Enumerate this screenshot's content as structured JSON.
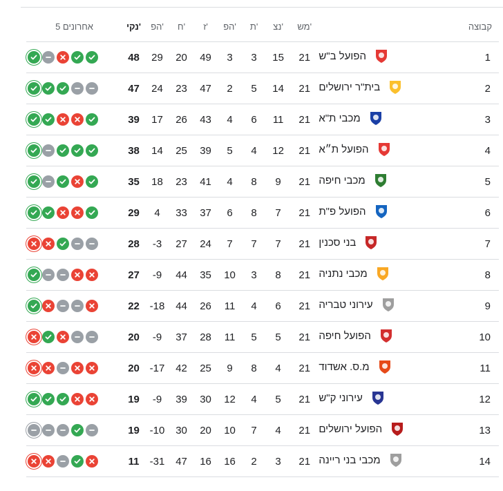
{
  "headers": {
    "form": "5 אחרונים",
    "pts": "נקי'",
    "gd": "הפ'",
    "ga": "ח'",
    "gf": "ז'",
    "l": "הפ'",
    "d": "ת'",
    "w": "נצ'",
    "mp": "מש'",
    "team": "קבוצה"
  },
  "colors": {
    "win": "#34a853",
    "loss": "#ea4335",
    "draw": "#9aa0a6",
    "divider": "#dadce0"
  },
  "rows": [
    {
      "rank": "1",
      "team": "הפועל ב\"ש",
      "crest": "#e53935",
      "mp": "21",
      "w": "15",
      "d": "3",
      "l": "3",
      "gf": "49",
      "ga": "20",
      "gd": "29",
      "pts": "48",
      "form": [
        "win",
        "draw",
        "loss",
        "win",
        "win"
      ]
    },
    {
      "rank": "2",
      "team": "בית\"ר ירושלים",
      "crest": "#fbc02d",
      "mp": "21",
      "w": "14",
      "d": "5",
      "l": "2",
      "gf": "47",
      "ga": "23",
      "gd": "24",
      "pts": "47",
      "form": [
        "win",
        "win",
        "win",
        "draw",
        "draw"
      ]
    },
    {
      "rank": "3",
      "team": "מכבי ת\"א",
      "crest": "#1a3fa6",
      "mp": "21",
      "w": "11",
      "d": "6",
      "l": "4",
      "gf": "43",
      "ga": "26",
      "gd": "17",
      "pts": "39",
      "form": [
        "win",
        "win",
        "loss",
        "loss",
        "win"
      ]
    },
    {
      "rank": "4",
      "team": "הפועל ת״א",
      "crest": "#e53935",
      "mp": "21",
      "w": "12",
      "d": "4",
      "l": "5",
      "gf": "39",
      "ga": "25",
      "gd": "14",
      "pts": "38",
      "form": [
        "win",
        "draw",
        "win",
        "win",
        "win"
      ]
    },
    {
      "rank": "5",
      "team": "מכבי חיפה",
      "crest": "#2e7d32",
      "mp": "21",
      "w": "9",
      "d": "8",
      "l": "4",
      "gf": "41",
      "ga": "23",
      "gd": "18",
      "pts": "35",
      "form": [
        "win",
        "draw",
        "win",
        "loss",
        "win"
      ]
    },
    {
      "rank": "6",
      "team": "הפועל פ\"ת",
      "crest": "#1565c0",
      "mp": "21",
      "w": "7",
      "d": "8",
      "l": "6",
      "gf": "37",
      "ga": "33",
      "gd": "4",
      "pts": "29",
      "form": [
        "win",
        "win",
        "loss",
        "loss",
        "win"
      ]
    },
    {
      "rank": "7",
      "team": "בני סכנין",
      "crest": "#c62828",
      "mp": "21",
      "w": "7",
      "d": "7",
      "l": "7",
      "gf": "24",
      "ga": "27",
      "gd": "-3",
      "pts": "28",
      "form": [
        "loss",
        "loss",
        "win",
        "draw",
        "draw"
      ]
    },
    {
      "rank": "8",
      "team": "מכבי נתניה",
      "crest": "#f9a825",
      "mp": "21",
      "w": "8",
      "d": "3",
      "l": "10",
      "gf": "35",
      "ga": "44",
      "gd": "-9",
      "pts": "27",
      "form": [
        "win",
        "draw",
        "draw",
        "loss",
        "loss"
      ]
    },
    {
      "rank": "9",
      "team": "עירוני טבריה",
      "crest": "#9e9e9e",
      "mp": "21",
      "w": "6",
      "d": "4",
      "l": "11",
      "gf": "26",
      "ga": "44",
      "gd": "-18",
      "pts": "22",
      "form": [
        "win",
        "loss",
        "draw",
        "draw",
        "loss"
      ]
    },
    {
      "rank": "10",
      "team": "הפועל חיפה",
      "crest": "#d32f2f",
      "mp": "21",
      "w": "5",
      "d": "5",
      "l": "11",
      "gf": "28",
      "ga": "37",
      "gd": "-9",
      "pts": "20",
      "form": [
        "loss",
        "win",
        "loss",
        "draw",
        "draw"
      ]
    },
    {
      "rank": "11",
      "team": "מ.ס. אשדוד",
      "crest": "#e64a19",
      "mp": "21",
      "w": "4",
      "d": "8",
      "l": "9",
      "gf": "25",
      "ga": "42",
      "gd": "-17",
      "pts": "20",
      "form": [
        "loss",
        "loss",
        "draw",
        "loss",
        "loss"
      ]
    },
    {
      "rank": "12",
      "team": "עירוני ק\"ש",
      "crest": "#283593",
      "mp": "21",
      "w": "5",
      "d": "4",
      "l": "12",
      "gf": "30",
      "ga": "39",
      "gd": "-9",
      "pts": "19",
      "form": [
        "win",
        "win",
        "win",
        "loss",
        "loss"
      ]
    },
    {
      "rank": "13",
      "team": "הפועל ירושלים",
      "crest": "#b71c1c",
      "mp": "21",
      "w": "4",
      "d": "7",
      "l": "10",
      "gf": "20",
      "ga": "30",
      "gd": "-10",
      "pts": "19",
      "form": [
        "draw",
        "draw",
        "draw",
        "win",
        "draw"
      ]
    },
    {
      "rank": "14",
      "team": "מכבי בני ריינה",
      "crest": "#9e9e9e",
      "mp": "21",
      "w": "3",
      "d": "2",
      "l": "16",
      "gf": "16",
      "ga": "47",
      "gd": "-31",
      "pts": "11",
      "form": [
        "loss",
        "loss",
        "draw",
        "win",
        "loss"
      ]
    }
  ]
}
